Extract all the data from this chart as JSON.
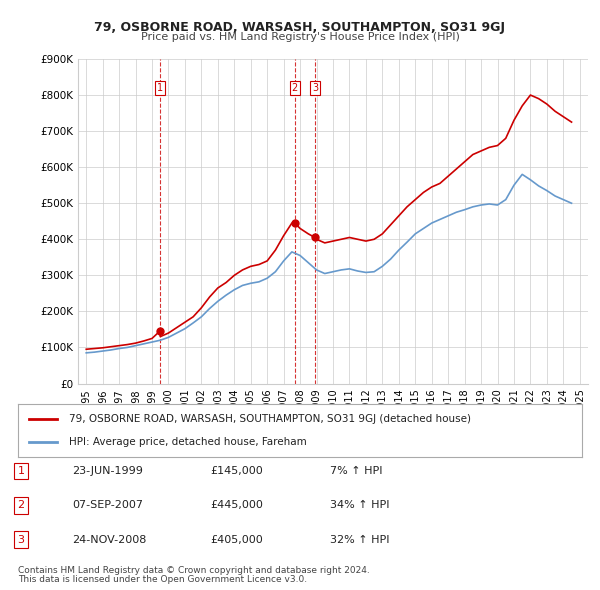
{
  "title": "79, OSBORNE ROAD, WARSASH, SOUTHAMPTON, SO31 9GJ",
  "subtitle": "Price paid vs. HM Land Registry's House Price Index (HPI)",
  "legend_label_red": "79, OSBORNE ROAD, WARSASH, SOUTHAMPTON, SO31 9GJ (detached house)",
  "legend_label_blue": "HPI: Average price, detached house, Fareham",
  "footnote1": "Contains HM Land Registry data © Crown copyright and database right 2024.",
  "footnote2": "This data is licensed under the Open Government Licence v3.0.",
  "red_color": "#cc0000",
  "blue_color": "#6699cc",
  "vline_color": "#cc0000",
  "background_color": "#ffffff",
  "grid_color": "#cccccc",
  "ylim": [
    0,
    900000
  ],
  "yticks": [
    0,
    100000,
    200000,
    300000,
    400000,
    500000,
    600000,
    700000,
    800000,
    900000
  ],
  "ytick_labels": [
    "£0",
    "£100K",
    "£200K",
    "£300K",
    "£400K",
    "£500K",
    "£600K",
    "£700K",
    "£800K",
    "£900K"
  ],
  "transactions": [
    {
      "num": 1,
      "date": "23-JUN-1999",
      "price": 145000,
      "hpi_note": "7% ↑ HPI",
      "year": 1999.47
    },
    {
      "num": 2,
      "date": "07-SEP-2007",
      "price": 445000,
      "hpi_note": "34% ↑ HPI",
      "year": 2007.68
    },
    {
      "num": 3,
      "date": "24-NOV-2008",
      "price": 405000,
      "hpi_note": "32% ↑ HPI",
      "year": 2008.9
    }
  ],
  "red_x": [
    1995.0,
    1995.5,
    1996.0,
    1996.5,
    1997.0,
    1997.5,
    1998.0,
    1998.5,
    1999.0,
    1999.47,
    1999.5,
    2000.0,
    2000.5,
    2001.0,
    2001.5,
    2002.0,
    2002.5,
    2003.0,
    2003.5,
    2004.0,
    2004.5,
    2005.0,
    2005.5,
    2006.0,
    2006.5,
    2007.0,
    2007.5,
    2007.68,
    2008.0,
    2008.5,
    2008.9,
    2009.0,
    2009.5,
    2010.0,
    2010.5,
    2011.0,
    2011.5,
    2012.0,
    2012.5,
    2013.0,
    2013.5,
    2014.0,
    2014.5,
    2015.0,
    2015.5,
    2016.0,
    2016.5,
    2017.0,
    2017.5,
    2018.0,
    2018.5,
    2019.0,
    2019.5,
    2020.0,
    2020.5,
    2021.0,
    2021.5,
    2022.0,
    2022.5,
    2023.0,
    2023.5,
    2024.0,
    2024.5
  ],
  "red_y": [
    95000,
    97000,
    99000,
    102000,
    105000,
    108000,
    112000,
    118000,
    125000,
    145000,
    130000,
    140000,
    155000,
    170000,
    185000,
    210000,
    240000,
    265000,
    280000,
    300000,
    315000,
    325000,
    330000,
    340000,
    370000,
    410000,
    445000,
    445000,
    430000,
    415000,
    405000,
    400000,
    390000,
    395000,
    400000,
    405000,
    400000,
    395000,
    400000,
    415000,
    440000,
    465000,
    490000,
    510000,
    530000,
    545000,
    555000,
    575000,
    595000,
    615000,
    635000,
    645000,
    655000,
    660000,
    680000,
    730000,
    770000,
    800000,
    790000,
    775000,
    755000,
    740000,
    725000
  ],
  "blue_x": [
    1995.0,
    1995.5,
    1996.0,
    1996.5,
    1997.0,
    1997.5,
    1998.0,
    1998.5,
    1999.0,
    1999.5,
    2000.0,
    2000.5,
    2001.0,
    2001.5,
    2002.0,
    2002.5,
    2003.0,
    2003.5,
    2004.0,
    2004.5,
    2005.0,
    2005.5,
    2006.0,
    2006.5,
    2007.0,
    2007.5,
    2008.0,
    2008.5,
    2009.0,
    2009.5,
    2010.0,
    2010.5,
    2011.0,
    2011.5,
    2012.0,
    2012.5,
    2013.0,
    2013.5,
    2014.0,
    2014.5,
    2015.0,
    2015.5,
    2016.0,
    2016.5,
    2017.0,
    2017.5,
    2018.0,
    2018.5,
    2019.0,
    2019.5,
    2020.0,
    2020.5,
    2021.0,
    2021.5,
    2022.0,
    2022.5,
    2023.0,
    2023.5,
    2024.0,
    2024.5
  ],
  "blue_y": [
    85000,
    87000,
    90000,
    93000,
    97000,
    100000,
    105000,
    110000,
    115000,
    120000,
    128000,
    140000,
    152000,
    168000,
    185000,
    208000,
    228000,
    245000,
    260000,
    272000,
    278000,
    282000,
    292000,
    310000,
    340000,
    365000,
    355000,
    335000,
    315000,
    305000,
    310000,
    315000,
    318000,
    312000,
    308000,
    310000,
    325000,
    345000,
    370000,
    392000,
    415000,
    430000,
    445000,
    455000,
    465000,
    475000,
    482000,
    490000,
    495000,
    498000,
    495000,
    510000,
    550000,
    580000,
    565000,
    548000,
    535000,
    520000,
    510000,
    500000
  ]
}
